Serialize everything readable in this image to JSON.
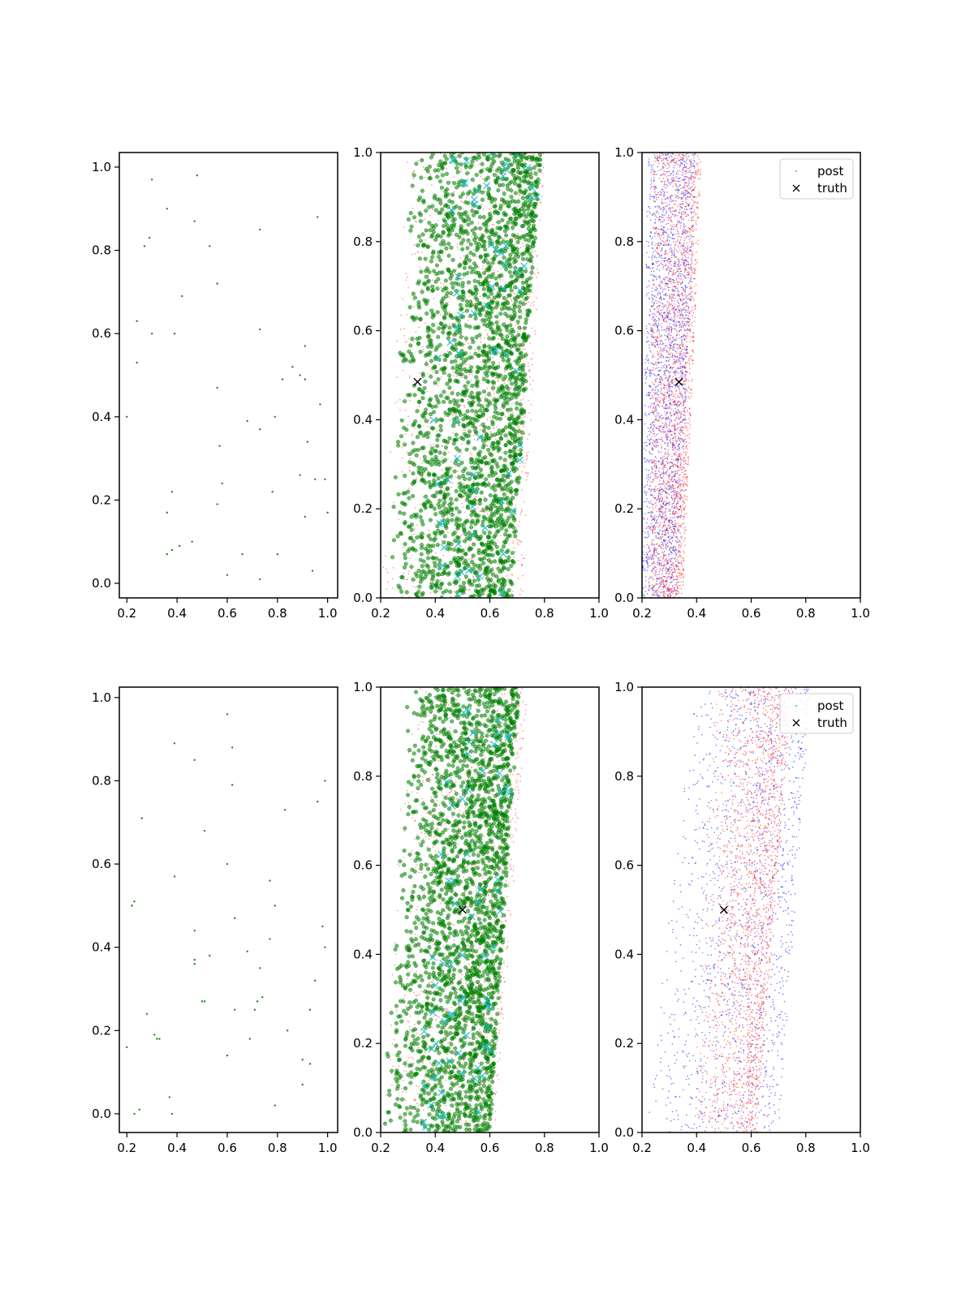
{
  "figure": {
    "layout": "2 rows x 3 columns of scatter panels",
    "background": "#ffffff"
  },
  "colors": {
    "green": "#008000",
    "red": "#ff0000",
    "blue": "#0000ff",
    "cyan": "#17becf",
    "truth": "#000000"
  },
  "chart_data": [
    {
      "id": "r0c0",
      "type": "scatter",
      "grid": false,
      "xlim": [
        0.17,
        1.04
      ],
      "ylim": [
        -0.035,
        1.035
      ],
      "xticks": [
        "0.2",
        "0.4",
        "0.6",
        "0.8",
        "1.0"
      ],
      "yticks": [
        "0.0",
        "0.2",
        "0.4",
        "0.6",
        "0.8",
        "1.0"
      ],
      "series": [
        {
          "color": "green",
          "marker": "dot",
          "size": 1.2,
          "points": [
            [
              0.3,
              0.97
            ],
            [
              0.48,
              0.98
            ],
            [
              0.36,
              0.9
            ],
            [
              0.47,
              0.87
            ],
            [
              0.96,
              0.88
            ],
            [
              0.27,
              0.81
            ],
            [
              0.29,
              0.83
            ],
            [
              0.53,
              0.81
            ],
            [
              0.73,
              0.85
            ],
            [
              0.56,
              0.72
            ],
            [
              0.42,
              0.69
            ],
            [
              0.24,
              0.63
            ],
            [
              0.3,
              0.6
            ],
            [
              0.39,
              0.6
            ],
            [
              0.73,
              0.61
            ],
            [
              0.91,
              0.57
            ],
            [
              0.24,
              0.53
            ],
            [
              0.86,
              0.52
            ],
            [
              0.89,
              0.5
            ],
            [
              0.82,
              0.49
            ],
            [
              0.91,
              0.49
            ],
            [
              0.56,
              0.47
            ],
            [
              0.97,
              0.43
            ],
            [
              0.2,
              0.4
            ],
            [
              0.79,
              0.4
            ],
            [
              0.68,
              0.39
            ],
            [
              0.73,
              0.37
            ],
            [
              0.57,
              0.33
            ],
            [
              0.92,
              0.34
            ],
            [
              0.89,
              0.26
            ],
            [
              0.58,
              0.24
            ],
            [
              0.95,
              0.25
            ],
            [
              0.99,
              0.25
            ],
            [
              0.38,
              0.22
            ],
            [
              0.78,
              0.22
            ],
            [
              0.56,
              0.19
            ],
            [
              0.36,
              0.17
            ],
            [
              0.91,
              0.16
            ],
            [
              1.0,
              0.17
            ],
            [
              0.41,
              0.09
            ],
            [
              0.46,
              0.1
            ],
            [
              0.36,
              0.07
            ],
            [
              0.38,
              0.08
            ],
            [
              0.66,
              0.07
            ],
            [
              0.8,
              0.07
            ],
            [
              0.6,
              0.02
            ],
            [
              0.73,
              0.01
            ],
            [
              0.94,
              0.03
            ]
          ]
        }
      ]
    },
    {
      "id": "r0c1",
      "type": "scatter",
      "grid": false,
      "xlim": [
        0.2,
        1.0
      ],
      "ylim": [
        0.0,
        1.0
      ],
      "xticks": [
        "0.2",
        "0.4",
        "0.6",
        "0.8",
        "1.0"
      ],
      "yticks": [
        "0.0",
        "0.2",
        "0.4",
        "0.6",
        "0.8",
        "1.0"
      ],
      "generated_clouds": [
        {
          "color": "red",
          "marker": "dot",
          "alpha": 0.45,
          "count": 1400,
          "seed": 11,
          "y_range": [
            0,
            1
          ],
          "x_left": [
            0.2,
            0.3
          ],
          "x_right": [
            0.72,
            0.8
          ],
          "x_skew": 0.7
        },
        {
          "color": "green",
          "marker": "circle",
          "alpha": 0.55,
          "count": 2400,
          "seed": 12,
          "y_range": [
            0,
            1
          ],
          "x_left": [
            0.22,
            0.3
          ],
          "x_right": [
            0.68,
            0.79
          ],
          "x_skew": 0.6
        },
        {
          "color": "cyan",
          "marker": "x",
          "alpha": 0.85,
          "count": 70,
          "seed": 13,
          "y_range": [
            0,
            1
          ],
          "x_left": [
            0.35,
            0.45
          ],
          "x_right": [
            0.68,
            0.8
          ],
          "x_skew": 0.9
        }
      ],
      "truth": [
        0.335,
        0.485
      ]
    },
    {
      "id": "r0c2",
      "type": "scatter",
      "grid": false,
      "xlim": [
        0.2,
        1.0
      ],
      "ylim": [
        0.0,
        1.0
      ],
      "xticks": [
        "0.2",
        "0.4",
        "0.6",
        "0.8",
        "1.0"
      ],
      "yticks": [
        "0.0",
        "0.2",
        "0.4",
        "0.6",
        "0.8",
        "1.0"
      ],
      "generated_clouds": [
        {
          "color": "blue",
          "marker": "dot",
          "alpha": 0.5,
          "count": 2200,
          "seed": 21,
          "y_range": [
            0,
            1
          ],
          "x_left": [
            0.2,
            0.22
          ],
          "x_right": [
            0.33,
            0.4
          ],
          "x_skew": 0.9
        },
        {
          "color": "red",
          "marker": "dot",
          "alpha": 0.5,
          "count": 2200,
          "seed": 22,
          "y_range": [
            0,
            1
          ],
          "x_left": [
            0.22,
            0.24
          ],
          "x_right": [
            0.35,
            0.42
          ],
          "x_skew": 0.8
        }
      ],
      "truth": [
        0.335,
        0.485
      ],
      "legend": {
        "placement": "upper right",
        "entries": [
          {
            "label": "post",
            "marker": "dot"
          },
          {
            "label": "truth",
            "marker": "x"
          }
        ]
      }
    },
    {
      "id": "r1c0",
      "type": "scatter",
      "grid": false,
      "xlim": [
        0.17,
        1.04
      ],
      "ylim": [
        -0.045,
        1.025
      ],
      "xticks": [
        "0.2",
        "0.4",
        "0.6",
        "0.8",
        "1.0"
      ],
      "yticks": [
        "0.0",
        "0.2",
        "0.4",
        "0.6",
        "0.8",
        "1.0"
      ],
      "series": [
        {
          "color": "green",
          "marker": "dot",
          "size": 1.2,
          "points": [
            [
              0.6,
              0.96
            ],
            [
              0.39,
              0.89
            ],
            [
              0.62,
              0.88
            ],
            [
              0.47,
              0.85
            ],
            [
              0.99,
              0.8
            ],
            [
              0.62,
              0.79
            ],
            [
              0.96,
              0.75
            ],
            [
              0.83,
              0.73
            ],
            [
              0.26,
              0.71
            ],
            [
              0.51,
              0.68
            ],
            [
              0.6,
              0.6
            ],
            [
              0.39,
              0.57
            ],
            [
              0.77,
              0.56
            ],
            [
              0.22,
              0.5
            ],
            [
              0.23,
              0.51
            ],
            [
              0.79,
              0.5
            ],
            [
              0.63,
              0.47
            ],
            [
              0.98,
              0.45
            ],
            [
              0.47,
              0.44
            ],
            [
              0.77,
              0.42
            ],
            [
              0.68,
              0.39
            ],
            [
              0.99,
              0.4
            ],
            [
              0.53,
              0.38
            ],
            [
              0.47,
              0.37
            ],
            [
              0.47,
              0.36
            ],
            [
              0.73,
              0.35
            ],
            [
              0.95,
              0.32
            ],
            [
              0.74,
              0.28
            ],
            [
              0.72,
              0.27
            ],
            [
              0.5,
              0.27
            ],
            [
              0.51,
              0.27
            ],
            [
              0.63,
              0.25
            ],
            [
              0.71,
              0.25
            ],
            [
              0.93,
              0.25
            ],
            [
              0.28,
              0.24
            ],
            [
              0.84,
              0.2
            ],
            [
              0.31,
              0.19
            ],
            [
              0.32,
              0.18
            ],
            [
              0.33,
              0.18
            ],
            [
              0.69,
              0.18
            ],
            [
              0.2,
              0.16
            ],
            [
              0.6,
              0.14
            ],
            [
              0.9,
              0.13
            ],
            [
              0.93,
              0.12
            ],
            [
              0.9,
              0.07
            ],
            [
              0.37,
              0.04
            ],
            [
              0.79,
              0.02
            ],
            [
              0.23,
              0.0
            ],
            [
              0.25,
              0.01
            ],
            [
              0.38,
              0.0
            ]
          ]
        }
      ]
    },
    {
      "id": "r1c1",
      "type": "scatter",
      "grid": false,
      "xlim": [
        0.2,
        1.0
      ],
      "ylim": [
        0.0,
        1.0
      ],
      "xticks": [
        "0.2",
        "0.4",
        "0.6",
        "0.8",
        "1.0"
      ],
      "yticks": [
        "0.0",
        "0.2",
        "0.4",
        "0.6",
        "0.8",
        "1.0"
      ],
      "generated_clouds": [
        {
          "color": "red",
          "marker": "dot",
          "alpha": 0.45,
          "count": 1400,
          "seed": 31,
          "y_range": [
            0,
            1
          ],
          "x_left": [
            0.2,
            0.3
          ],
          "x_right": [
            0.62,
            0.74
          ],
          "x_skew": 0.7
        },
        {
          "color": "green",
          "marker": "circle",
          "alpha": 0.55,
          "count": 2400,
          "seed": 32,
          "y_range": [
            0,
            1
          ],
          "x_left": [
            0.2,
            0.3
          ],
          "x_right": [
            0.6,
            0.71
          ],
          "x_skew": 0.6
        },
        {
          "color": "cyan",
          "marker": "x",
          "alpha": 0.85,
          "count": 70,
          "seed": 33,
          "y_range": [
            0,
            1
          ],
          "x_left": [
            0.32,
            0.45
          ],
          "x_right": [
            0.58,
            0.72
          ],
          "x_skew": 0.9
        }
      ],
      "truth": [
        0.5,
        0.5
      ]
    },
    {
      "id": "r1c2",
      "type": "scatter",
      "grid": false,
      "xlim": [
        0.2,
        1.0
      ],
      "ylim": [
        0.0,
        1.0
      ],
      "xticks": [
        "0.2",
        "0.4",
        "0.6",
        "0.8",
        "1.0"
      ],
      "yticks": [
        "0.0",
        "0.2",
        "0.4",
        "0.6",
        "0.8",
        "1.0"
      ],
      "generated_clouds": [
        {
          "color": "blue",
          "marker": "dot",
          "alpha": 0.55,
          "count": 1500,
          "seed": 41,
          "y_range": [
            0,
            1
          ],
          "x_left": [
            0.2,
            0.4
          ],
          "x_right": [
            0.7,
            0.82
          ],
          "x_skew": 0.7
        },
        {
          "color": "red",
          "marker": "dot",
          "alpha": 0.5,
          "count": 2000,
          "seed": 42,
          "y_range": [
            0,
            1
          ],
          "x_left": [
            0.35,
            0.45
          ],
          "x_right": [
            0.62,
            0.75
          ],
          "x_skew": 0.5
        }
      ],
      "truth": [
        0.5,
        0.5
      ],
      "legend": {
        "placement": "upper right",
        "entries": [
          {
            "label": "post",
            "marker": "dot"
          },
          {
            "label": "truth",
            "marker": "x"
          }
        ]
      }
    }
  ]
}
